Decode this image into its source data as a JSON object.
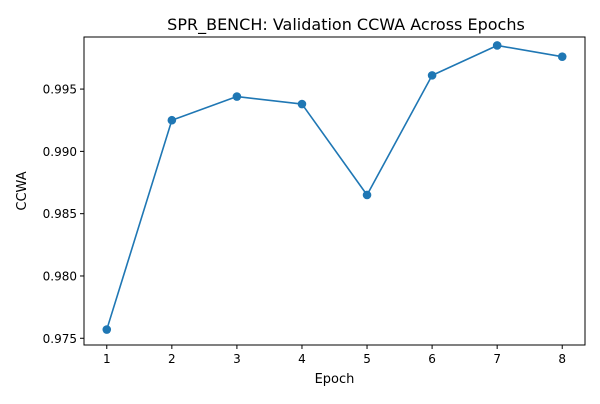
{
  "chart_data": {
    "type": "line",
    "title": "SPR_BENCH: Validation CCWA Across Epochs",
    "xlabel": "Epoch",
    "ylabel": "CCWA",
    "x": [
      1,
      2,
      3,
      4,
      5,
      6,
      7,
      8
    ],
    "series": [
      {
        "values": [
          0.9757,
          0.9925,
          0.9944,
          0.9938,
          0.9865,
          0.9961,
          0.9985,
          0.9976
        ],
        "color": "#1f77b4",
        "marker": "circle"
      }
    ],
    "xticks": [
      "1",
      "2",
      "3",
      "4",
      "5",
      "6",
      "7",
      "8"
    ],
    "yticks": [
      {
        "value": 0.975,
        "label": "0.975"
      },
      {
        "value": 0.98,
        "label": "0.980"
      },
      {
        "value": 0.985,
        "label": "0.985"
      },
      {
        "value": 0.99,
        "label": "0.990"
      },
      {
        "value": 0.995,
        "label": "0.995"
      }
    ],
    "xlim": [
      0.65,
      8.35
    ],
    "ylim": [
      0.97446,
      0.99918
    ],
    "grid": false,
    "legend": "none"
  }
}
